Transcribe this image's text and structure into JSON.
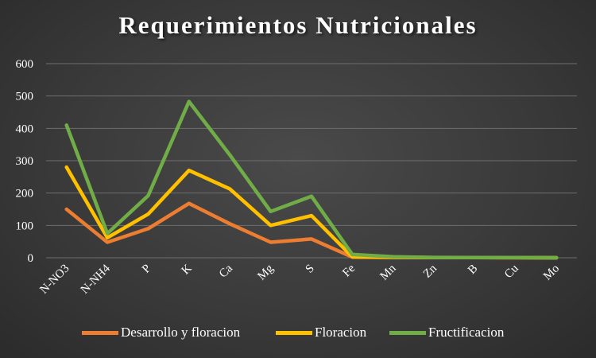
{
  "chart_data": {
    "type": "line",
    "title": "Requerimientos Nutricionales",
    "xlabel": "",
    "ylabel": "",
    "ylim": [
      0,
      600
    ],
    "yticks": [
      "0",
      "100",
      "200",
      "300",
      "400",
      "500",
      "600"
    ],
    "grid": true,
    "legend_position": "bottom",
    "categories": [
      "N-NO3",
      "N-NH4",
      "P",
      "K",
      "Ca",
      "Mg",
      "S",
      "Fe",
      "Mn",
      "Zn",
      "B",
      "Cu",
      "Mo"
    ],
    "series": [
      {
        "name": "Desarrollo y floracion",
        "color": "#ED7D31",
        "values": [
          150,
          48,
          90,
          168,
          105,
          48,
          58,
          2,
          1,
          0.5,
          0.5,
          0.3,
          0.1
        ]
      },
      {
        "name": "Floracion",
        "color": "#FFC000",
        "values": [
          280,
          62,
          135,
          270,
          213,
          100,
          130,
          3,
          1.5,
          0.8,
          0.6,
          0.3,
          0.1
        ]
      },
      {
        "name": "Fructificacion",
        "color": "#70AD47",
        "values": [
          410,
          75,
          192,
          483,
          318,
          143,
          190,
          10,
          3,
          1,
          0.8,
          0.4,
          0.1
        ]
      }
    ]
  }
}
